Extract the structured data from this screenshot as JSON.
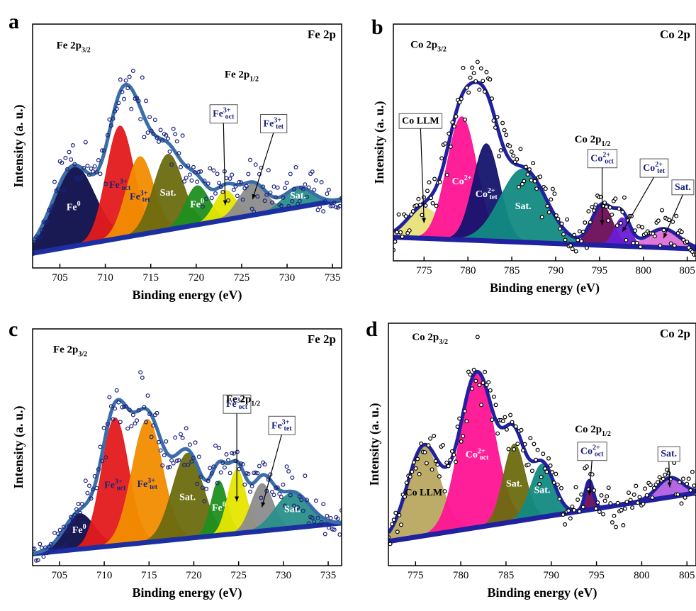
{
  "figure": {
    "axis_xlabel": "Binding energy (eV)",
    "axis_ylabel": "Intensity (a. u.)"
  },
  "chart_data": [
    {
      "id": "a",
      "type": "scatter",
      "panel_letter": "a",
      "title": "Fe 2p",
      "xlabel": "Binding energy (eV)",
      "ylabel": "Intensity (a. u.)",
      "xlim": [
        702,
        736
      ],
      "ylim": [
        0,
        1
      ],
      "xticks": [
        705,
        710,
        715,
        720,
        725,
        730,
        735
      ],
      "grid": false,
      "annotations": [
        {
          "text": "Fe 2p",
          "sub": "3/2",
          "x": 706.5,
          "y": 0.9
        },
        {
          "text": "Fe 2p",
          "sub": "1/2",
          "x": 725,
          "y": 0.78
        }
      ],
      "background": {
        "start": 0.06,
        "end": 0.28
      },
      "peaks": [
        {
          "label": "Fe",
          "sup": "0",
          "center": 706.5,
          "height": 0.33,
          "width": 2.3,
          "color": "#0d0d4a",
          "label_color": "#ffffff",
          "label_pos": "in"
        },
        {
          "label": "Fe",
          "sup": "3+",
          "sub": "oct",
          "center": 711.6,
          "height": 0.46,
          "width": 1.5,
          "color": "#e41a1c",
          "label_color": "#1a237e",
          "label_pos": "in"
        },
        {
          "label": "Fe",
          "sup": "3+",
          "sub": "tet",
          "center": 713.8,
          "height": 0.32,
          "width": 1.5,
          "color": "#f28c00",
          "label_color": "#1a237e",
          "label_pos": "in"
        },
        {
          "label": "Sat.",
          "center": 716.9,
          "height": 0.31,
          "width": 1.6,
          "color": "#6b6b10",
          "label_color": "#ffffff",
          "label_pos": "in"
        },
        {
          "label": "Fe",
          "sup": "0",
          "center": 720.1,
          "height": 0.16,
          "width": 1.3,
          "color": "#1f8f1f",
          "label_color": "#ffffff",
          "label_pos": "in"
        },
        {
          "label": "Fe",
          "sup": "3+",
          "sub": "oct",
          "center": 723.2,
          "height": 0.12,
          "width": 1.2,
          "color": "#e6e600",
          "label_color": "#1a237e",
          "label_pos": "box",
          "box_x": 723.0,
          "box_y": 0.62
        },
        {
          "label": "Fe",
          "sup": "3+",
          "sub": "tet",
          "center": 726.2,
          "height": 0.13,
          "width": 1.5,
          "color": "#8c8c8c",
          "label_color": "#1a237e",
          "label_pos": "box",
          "box_x": 728.5,
          "box_y": 0.58
        },
        {
          "label": "Sat.",
          "center": 731.2,
          "height": 0.08,
          "width": 1.6,
          "color": "#2a8f8a",
          "label_color": "#ffffff",
          "label_pos": "in"
        }
      ],
      "envelope_color": "#3b6ea8",
      "points_color": "#1a237e",
      "points_style": "filled",
      "seed": 11
    },
    {
      "id": "b",
      "type": "scatter",
      "panel_letter": "b",
      "title": "Co 2p",
      "xlabel": "Binding energy (eV)",
      "ylabel": "Intensity (a. u.)",
      "xlim": [
        771.5,
        806
      ],
      "ylim": [
        0,
        1
      ],
      "xticks": [
        775,
        780,
        785,
        790,
        795,
        800,
        805
      ],
      "grid": false,
      "annotations": [
        {
          "text": "Co 2p",
          "sub": "3/2",
          "x": 775.5,
          "y": 0.9
        },
        {
          "text": "Co 2p",
          "sub": "1/2",
          "x": 794.2,
          "y": 0.5
        }
      ],
      "background": {
        "start": 0.1,
        "end": 0.05
      },
      "peaks": [
        {
          "label": "Co LLM",
          "center": 775.0,
          "height": 0.13,
          "width": 1.9,
          "color": "#e8e07a",
          "label_color": "#000000",
          "label_pos": "box",
          "box_x": 774.6,
          "box_y": 0.58
        },
        {
          "label": "Co",
          "sup": "2+",
          "center": 779.3,
          "height": 0.52,
          "width": 1.7,
          "color": "#ff1493",
          "label_color": "#ffffff",
          "label_pos": "in"
        },
        {
          "label": "Co",
          "sup": "2+",
          "sub": "tet",
          "center": 782.1,
          "height": 0.41,
          "width": 1.5,
          "color": "#14146e",
          "label_color": "#ffffff",
          "label_pos": "in"
        },
        {
          "label": "Sat.",
          "center": 786.3,
          "height": 0.31,
          "width": 2.6,
          "color": "#128a82",
          "label_color": "#ffffff",
          "label_pos": "in"
        },
        {
          "label": "Co",
          "sup": "2+",
          "sub": "oct",
          "center": 795.3,
          "height": 0.17,
          "width": 1.2,
          "color": "#6a0d5a",
          "label_color": "#1a237e",
          "label_pos": "box",
          "box_x": 795.3,
          "box_y": 0.42
        },
        {
          "label": "Co",
          "sup": "2+",
          "sub": "tet",
          "center": 797.6,
          "height": 0.12,
          "width": 0.9,
          "color": "#6a1bd6",
          "label_color": "#1a237e",
          "label_pos": "box",
          "box_x": 801.2,
          "box_y": 0.38
        },
        {
          "label": "Sat.",
          "center": 802.3,
          "height": 0.08,
          "width": 1.8,
          "color": "#e070d8",
          "label_color": "#1a237e",
          "label_pos": "box",
          "box_x": 804.5,
          "box_y": 0.3
        }
      ],
      "envelope_color": "#2020a0",
      "points_color": "#000000",
      "points_style": "open",
      "seed": 23
    },
    {
      "id": "c",
      "type": "scatter",
      "panel_letter": "c",
      "title": "Fe 2p",
      "xlabel": "Binding energy (eV)",
      "ylabel": "Intensity (a. u.)",
      "xlim": [
        702,
        736.5
      ],
      "ylim": [
        0,
        1
      ],
      "xticks": [
        705,
        710,
        715,
        720,
        725,
        730,
        735
      ],
      "grid": false,
      "annotations": [
        {
          "text": "Fe 2p",
          "sub": "3/2",
          "x": 706.2,
          "y": 0.9
        },
        {
          "text": "Fe 2p",
          "sub": "1/2",
          "x": 725.5,
          "y": 0.69
        }
      ],
      "background": {
        "start": 0.05,
        "end": 0.18
      },
      "peaks": [
        {
          "label": "Fe",
          "sup": "0",
          "center": 707.2,
          "height": 0.15,
          "width": 1.7,
          "color": "#0d0d4a",
          "label_color": "#ffffff",
          "label_pos": "in"
        },
        {
          "label": "Fe",
          "sup": "3+",
          "sub": "oct",
          "center": 711.2,
          "height": 0.54,
          "width": 1.5,
          "color": "#e41a1c",
          "label_color": "#1a237e",
          "label_pos": "in"
        },
        {
          "label": "Fe",
          "sup": "3+",
          "sub": "tet",
          "center": 714.8,
          "height": 0.52,
          "width": 1.7,
          "color": "#f28c00",
          "label_color": "#1a237e",
          "label_pos": "in"
        },
        {
          "label": "Sat.",
          "center": 719.3,
          "height": 0.36,
          "width": 1.7,
          "color": "#6b6b10",
          "label_color": "#ffffff",
          "label_pos": "in"
        },
        {
          "label": "Fe",
          "sup": "0",
          "center": 722.8,
          "height": 0.23,
          "width": 0.9,
          "color": "#1f8f1f",
          "label_color": "#ffffff",
          "label_pos": "in"
        },
        {
          "label": "Fe",
          "sup": "3+",
          "sub": "oct",
          "center": 724.8,
          "height": 0.27,
          "width": 1.0,
          "color": "#e6e600",
          "label_color": "#1a237e",
          "label_pos": "box",
          "box_x": 724.8,
          "box_y": 0.67
        },
        {
          "label": "Fe",
          "sup": "3+",
          "sub": "tet",
          "center": 727.6,
          "height": 0.2,
          "width": 1.2,
          "color": "#8c8c8c",
          "label_color": "#1a237e",
          "label_pos": "box",
          "box_x": 729.8,
          "box_y": 0.58
        },
        {
          "label": "Sat.",
          "center": 731.0,
          "height": 0.15,
          "width": 1.9,
          "color": "#2a8f8a",
          "label_color": "#ffffff",
          "label_pos": "in"
        }
      ],
      "envelope_color": "#3b6ea8",
      "points_color": "#1a237e",
      "points_style": "filled",
      "seed": 37
    },
    {
      "id": "d",
      "type": "scatter",
      "panel_letter": "d",
      "title": "Co 2p",
      "xlabel": "Binding energy (eV)",
      "ylabel": "Intensity (a. u.)",
      "xlim": [
        772,
        806
      ],
      "ylim": [
        0,
        1
      ],
      "xticks": [
        775,
        780,
        785,
        790,
        795,
        800,
        805
      ],
      "grid": false,
      "annotations": [
        {
          "text": "Co 2p",
          "sub": "3/2",
          "x": 776.6,
          "y": 0.93
        },
        {
          "text": "Co 2p",
          "sub": "1/2",
          "x": 794.6,
          "y": 0.55
        }
      ],
      "background": {
        "start": 0.1,
        "end": 0.3
      },
      "peaks": [
        {
          "label": "Co LLM",
          "center": 775.9,
          "height": 0.37,
          "width": 1.8,
          "color": "#b8a860",
          "label_color": "#000000",
          "label_pos": "in"
        },
        {
          "label": "Co",
          "sup": "2+",
          "sub": "oct",
          "center": 781.8,
          "height": 0.64,
          "width": 1.9,
          "color": "#ff1493",
          "label_color": "#ffffff",
          "label_pos": "in"
        },
        {
          "label": "Sat.",
          "center": 785.9,
          "height": 0.32,
          "width": 1.2,
          "color": "#6b6b10",
          "label_color": "#ffffff",
          "label_pos": "in"
        },
        {
          "label": "Sat.",
          "center": 789.0,
          "height": 0.22,
          "width": 1.3,
          "color": "#128a82",
          "label_color": "#ffffff",
          "label_pos": "in"
        },
        {
          "label": "Co",
          "sup": "2+",
          "sub": "oct",
          "center": 794.2,
          "height": 0.12,
          "width": 0.45,
          "color": "#6a0d5a",
          "label_color": "#1a237e",
          "label_pos": "box",
          "box_x": 794.5,
          "box_y": 0.46
        },
        {
          "label": "Sat.",
          "center": 803.1,
          "height": 0.08,
          "width": 1.4,
          "color": "#b05fe0",
          "label_color": "#1a237e",
          "label_pos": "box",
          "box_x": 803.0,
          "box_y": 0.45
        }
      ],
      "envelope_color": "#2020a0",
      "points_color": "#000000",
      "points_style": "open",
      "seed": 51
    }
  ]
}
